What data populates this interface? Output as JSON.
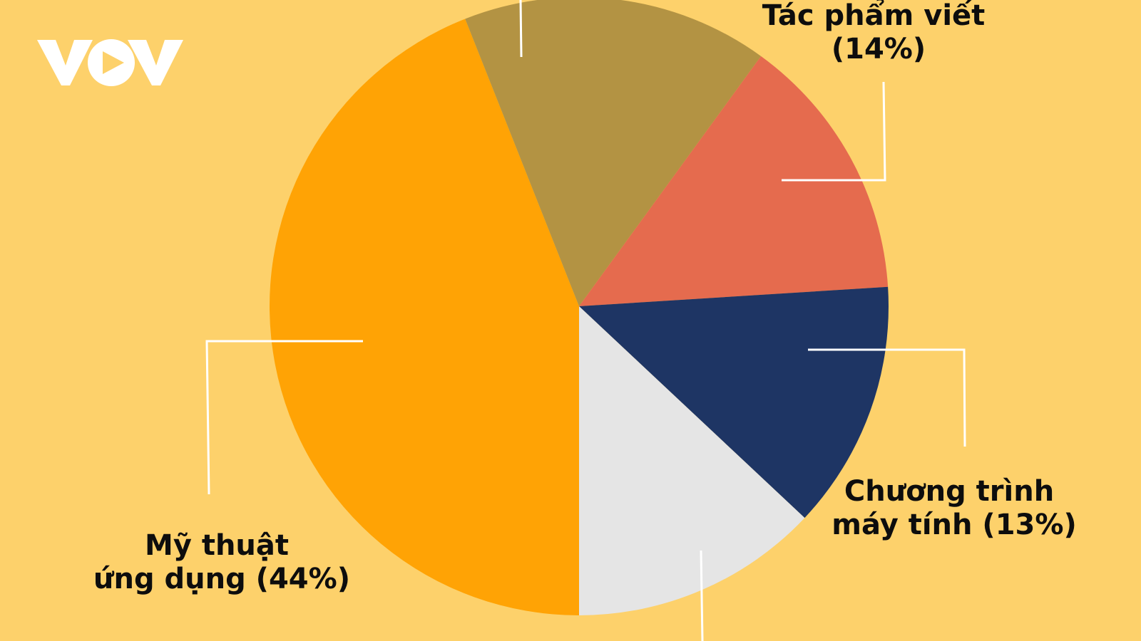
{
  "brand": {
    "logo_text": "VOV",
    "logo_color": "#FFFFFF"
  },
  "chart_data": {
    "type": "pie",
    "title": "",
    "slices": [
      {
        "label": "Mỹ thuật ứng dụng (44%)",
        "lines": [
          "Mỹ thuật",
          "ứng dụng (44%)"
        ],
        "value": 44,
        "color": "#FFA305"
      },
      {
        "label": "",
        "lines": [],
        "value": 16,
        "color": "#B39343"
      },
      {
        "label": "Tác phẩm viết (14%)",
        "lines": [
          "Tác phẩm viết",
          "(14%)"
        ],
        "value": 14,
        "color": "#E56B4E"
      },
      {
        "label": "Chương trình máy tính (13%)",
        "lines": [
          "Chương trình",
          "máy tính (13%)"
        ],
        "value": 13,
        "color": "#1E3564"
      },
      {
        "label": "",
        "lines": [],
        "value": 13,
        "color": "#E5E5E5"
      }
    ],
    "start_angle_deg": 180,
    "direction": "clockwise",
    "legend": "none",
    "leader_line_color": "#FFFFFF",
    "background_color": "#FDD16B"
  }
}
